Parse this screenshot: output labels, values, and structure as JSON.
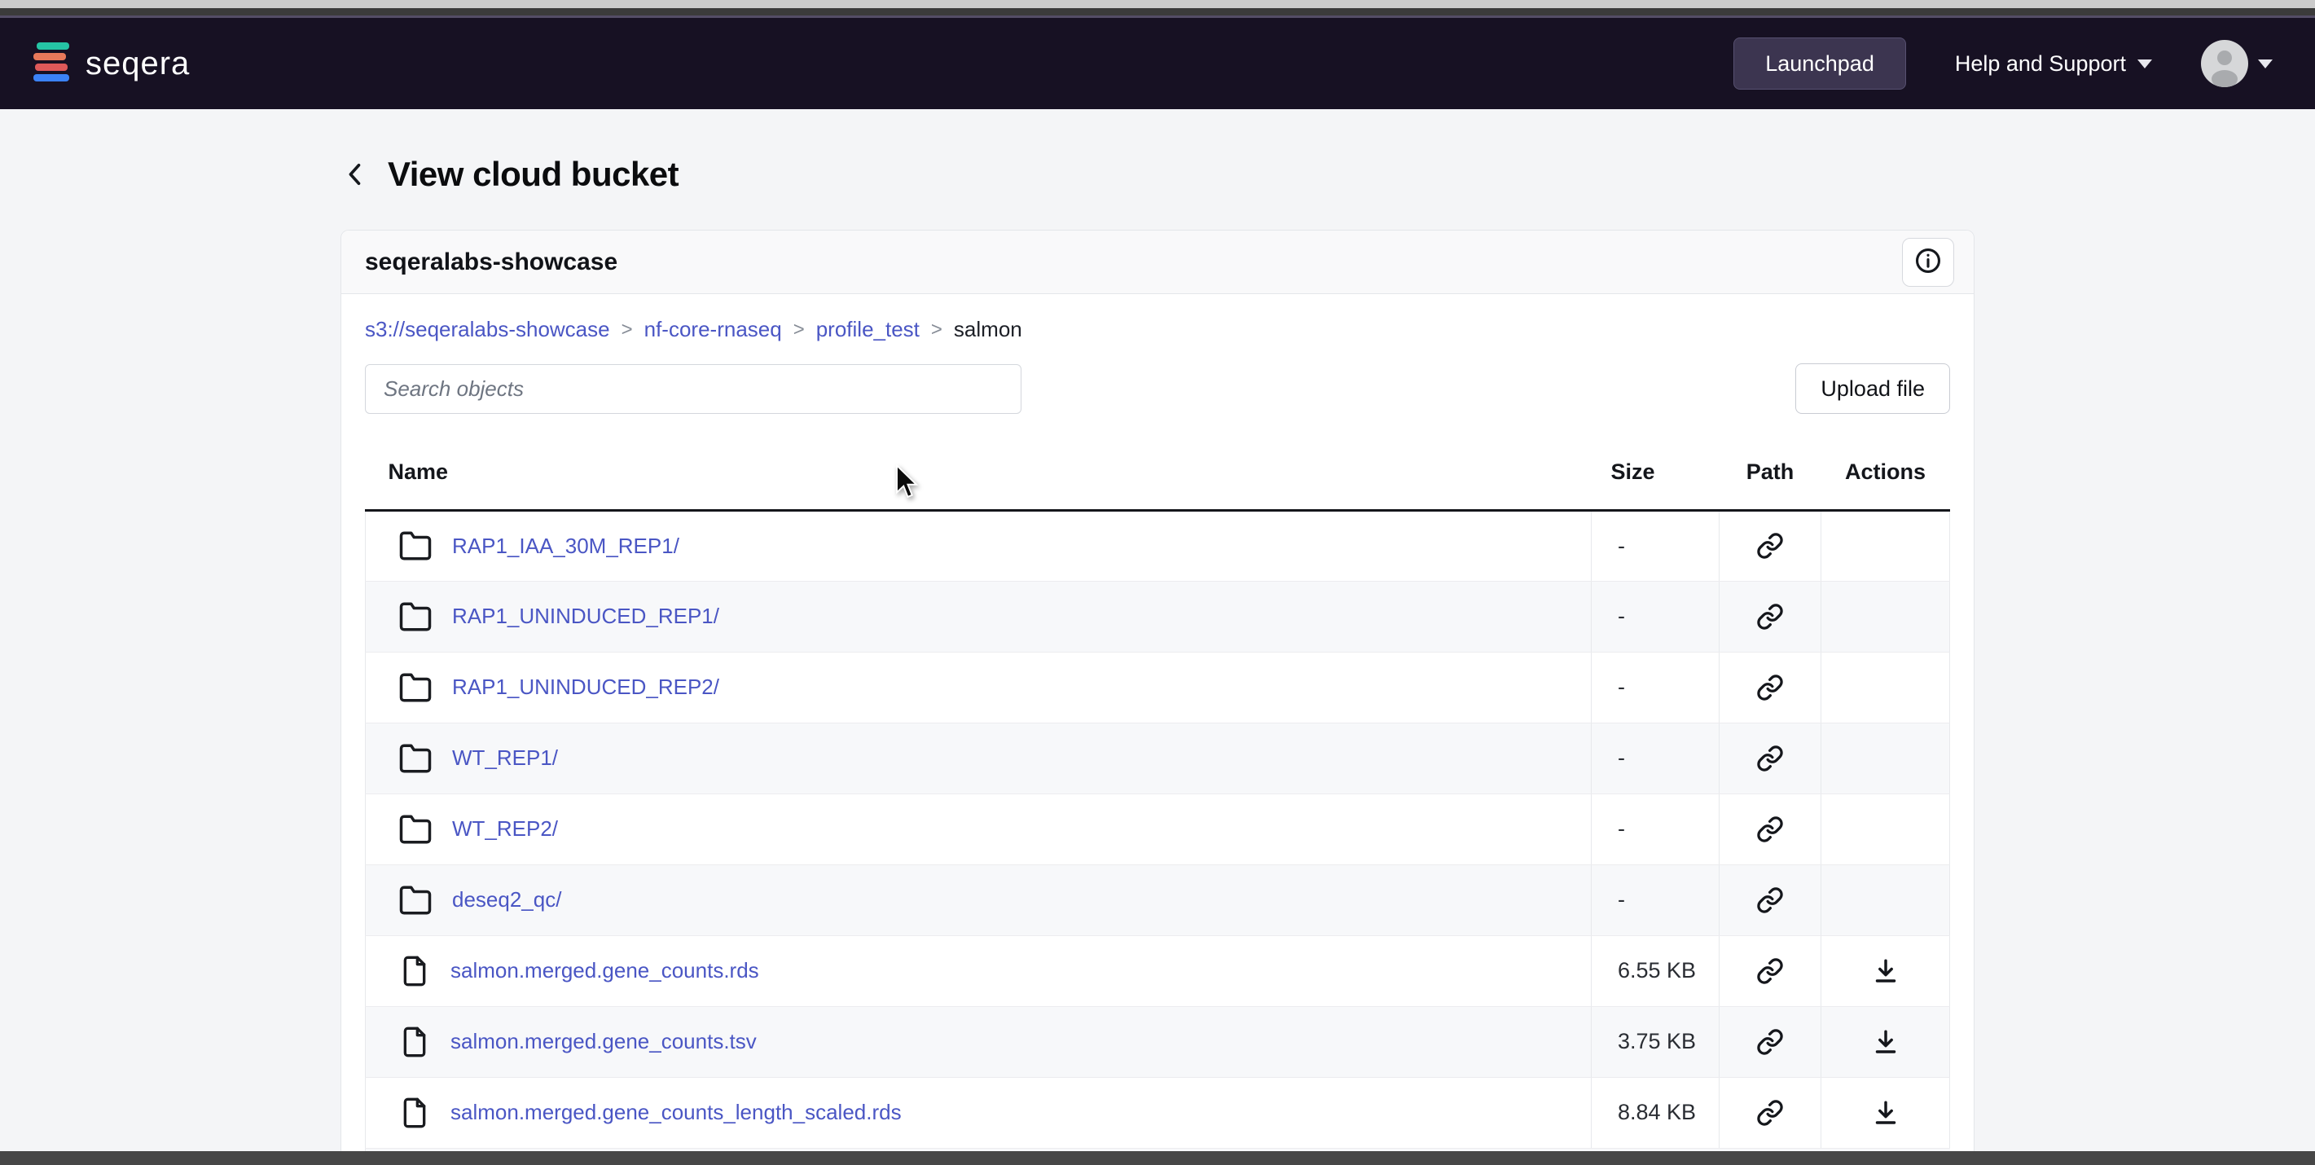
{
  "navbar": {
    "brand": "seqera",
    "launchpad_label": "Launchpad",
    "help_label": "Help and Support"
  },
  "page": {
    "title": "View cloud bucket"
  },
  "bucket_card": {
    "title": "seqeralabs-showcase",
    "breadcrumb_separator": ">",
    "breadcrumbs": [
      {
        "label": "s3://seqeralabs-showcase",
        "link": true
      },
      {
        "label": "nf-core-rnaseq",
        "link": true
      },
      {
        "label": "profile_test",
        "link": true
      },
      {
        "label": "salmon",
        "link": false
      }
    ],
    "search_placeholder": "Search objects",
    "upload_label": "Upload file",
    "table": {
      "headers": [
        "Name",
        "Size",
        "Path",
        "Actions"
      ],
      "rows": [
        {
          "name": "RAP1_IAA_30M_REP1/",
          "type": "folder",
          "size": "-",
          "downloadable": false
        },
        {
          "name": "RAP1_UNINDUCED_REP1/",
          "type": "folder",
          "size": "-",
          "downloadable": false
        },
        {
          "name": "RAP1_UNINDUCED_REP2/",
          "type": "folder",
          "size": "-",
          "downloadable": false
        },
        {
          "name": "WT_REP1/",
          "type": "folder",
          "size": "-",
          "downloadable": false
        },
        {
          "name": "WT_REP2/",
          "type": "folder",
          "size": "-",
          "downloadable": false
        },
        {
          "name": "deseq2_qc/",
          "type": "folder",
          "size": "-",
          "downloadable": false
        },
        {
          "name": "salmon.merged.gene_counts.rds",
          "type": "file",
          "size": "6.55 KB",
          "downloadable": true
        },
        {
          "name": "salmon.merged.gene_counts.tsv",
          "type": "file",
          "size": "3.75 KB",
          "downloadable": true
        },
        {
          "name": "salmon.merged.gene_counts_length_scaled.rds",
          "type": "file",
          "size": "8.84 KB",
          "downloadable": true
        }
      ],
      "partial_row_visible": true
    }
  },
  "icons": {
    "brand": "seqera-logo-icon",
    "folder": "folder-icon",
    "file": "file-icon",
    "path": "link-icon",
    "download": "download-icon",
    "info": "info-icon",
    "back": "chevron-left-icon",
    "menu_caret": "chevron-down-icon",
    "avatar": "user-avatar-icon"
  },
  "colors": {
    "page-bg": "#f4f5f7",
    "navbar-bg": "#171123",
    "link": "#4a56c4",
    "text-dark": "#15181d",
    "border": "#e4e6ea",
    "row-alt": "#f7f8fa",
    "logo-teal": "#25c4a4",
    "logo-orange": "#e8795a",
    "logo-red": "#dd5959",
    "logo-blue": "#3b82f6"
  }
}
